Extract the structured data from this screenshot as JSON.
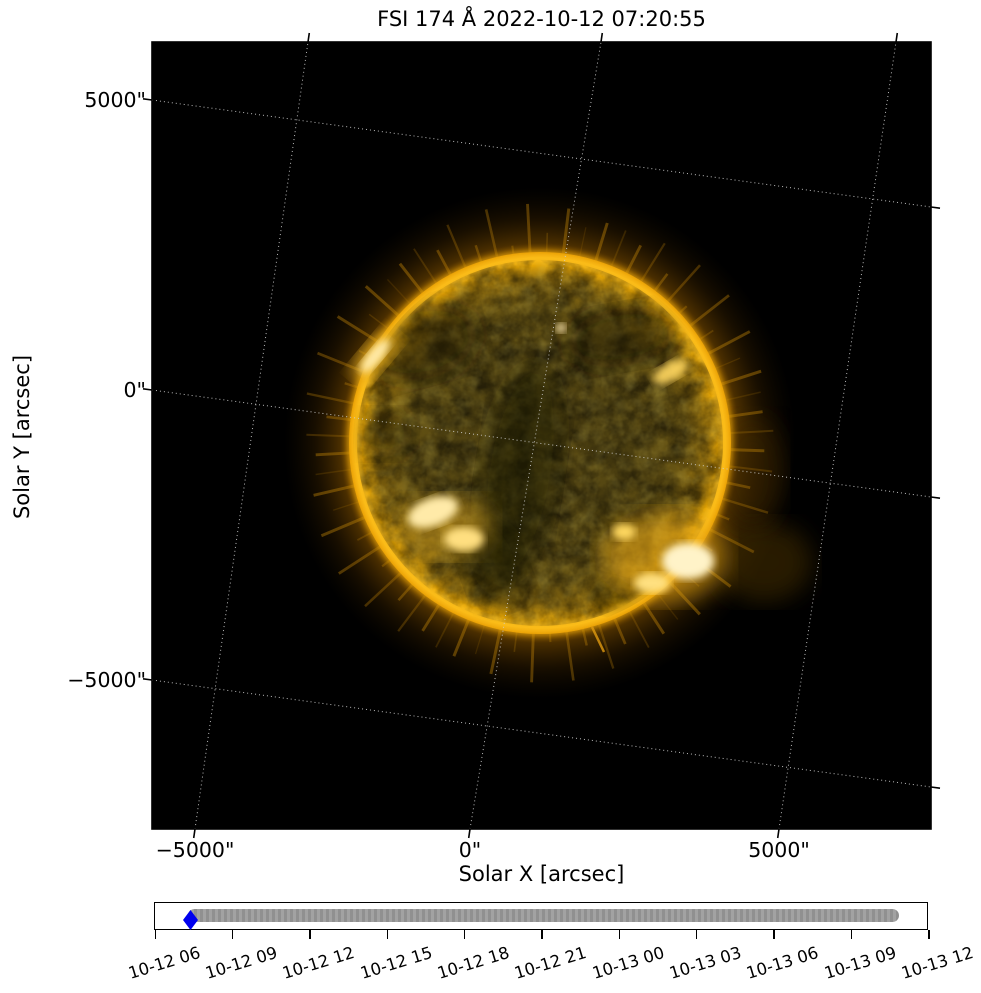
{
  "figure": {
    "title": "FSI 174 Å 2022-10-12 07:20:55"
  },
  "x_axis": {
    "label": "Solar X [arcsec]",
    "ticks": [
      "−5000\"",
      "0\"",
      "5000\""
    ]
  },
  "y_axis": {
    "label": "Solar Y [arcsec]",
    "ticks": [
      "5000\"",
      "0\"",
      "−5000\""
    ]
  },
  "timeline": {
    "tick_labels": [
      "10-12 06",
      "10-12 09",
      "10-12 12",
      "10-12 15",
      "10-12 18",
      "10-12 21",
      "10-13 00",
      "10-13 03",
      "10-13 06",
      "10-13 09",
      "10-13 12"
    ],
    "marker_color": "#0000ee",
    "track_color": "#999999"
  },
  "palette": {
    "background": "#000000",
    "sun_limb": "#ffbb10",
    "sun_interior": "#56470f",
    "glow": "#b97f07",
    "grid": "#cccccc"
  },
  "chart_data": {
    "type": "heatmap",
    "title": "FSI 174 Å 2022-10-12 07:20:55",
    "description": "Full-disk solar EUV image (FSI 174 Å) shown in helioprojective coordinates with dotted WCS grid rotated ~8°; bright limb ring, dark coronal-hole channel through disk center, bright active regions at upper-left, mid-right, lower-left and lower-right of the disk.",
    "xlabel": "Solar X [arcsec]",
    "ylabel": "Solar Y [arcsec]",
    "x_ticks_arcsec": [
      -5000,
      0,
      5000
    ],
    "y_ticks_arcsec": [
      5000,
      0,
      -5000
    ],
    "grid": "dotted",
    "timeline_axis": {
      "tick_labels": [
        "10-12 06",
        "10-12 09",
        "10-12 12",
        "10-12 15",
        "10-12 18",
        "10-12 21",
        "10-13 00",
        "10-13 03",
        "10-13 06",
        "10-13 09",
        "10-13 12"
      ],
      "step_hours": 3,
      "current_marker": "2022-10-12 07:20:55",
      "available_range_approx": [
        "10-12 07:15",
        "10-13 10:45"
      ]
    }
  }
}
